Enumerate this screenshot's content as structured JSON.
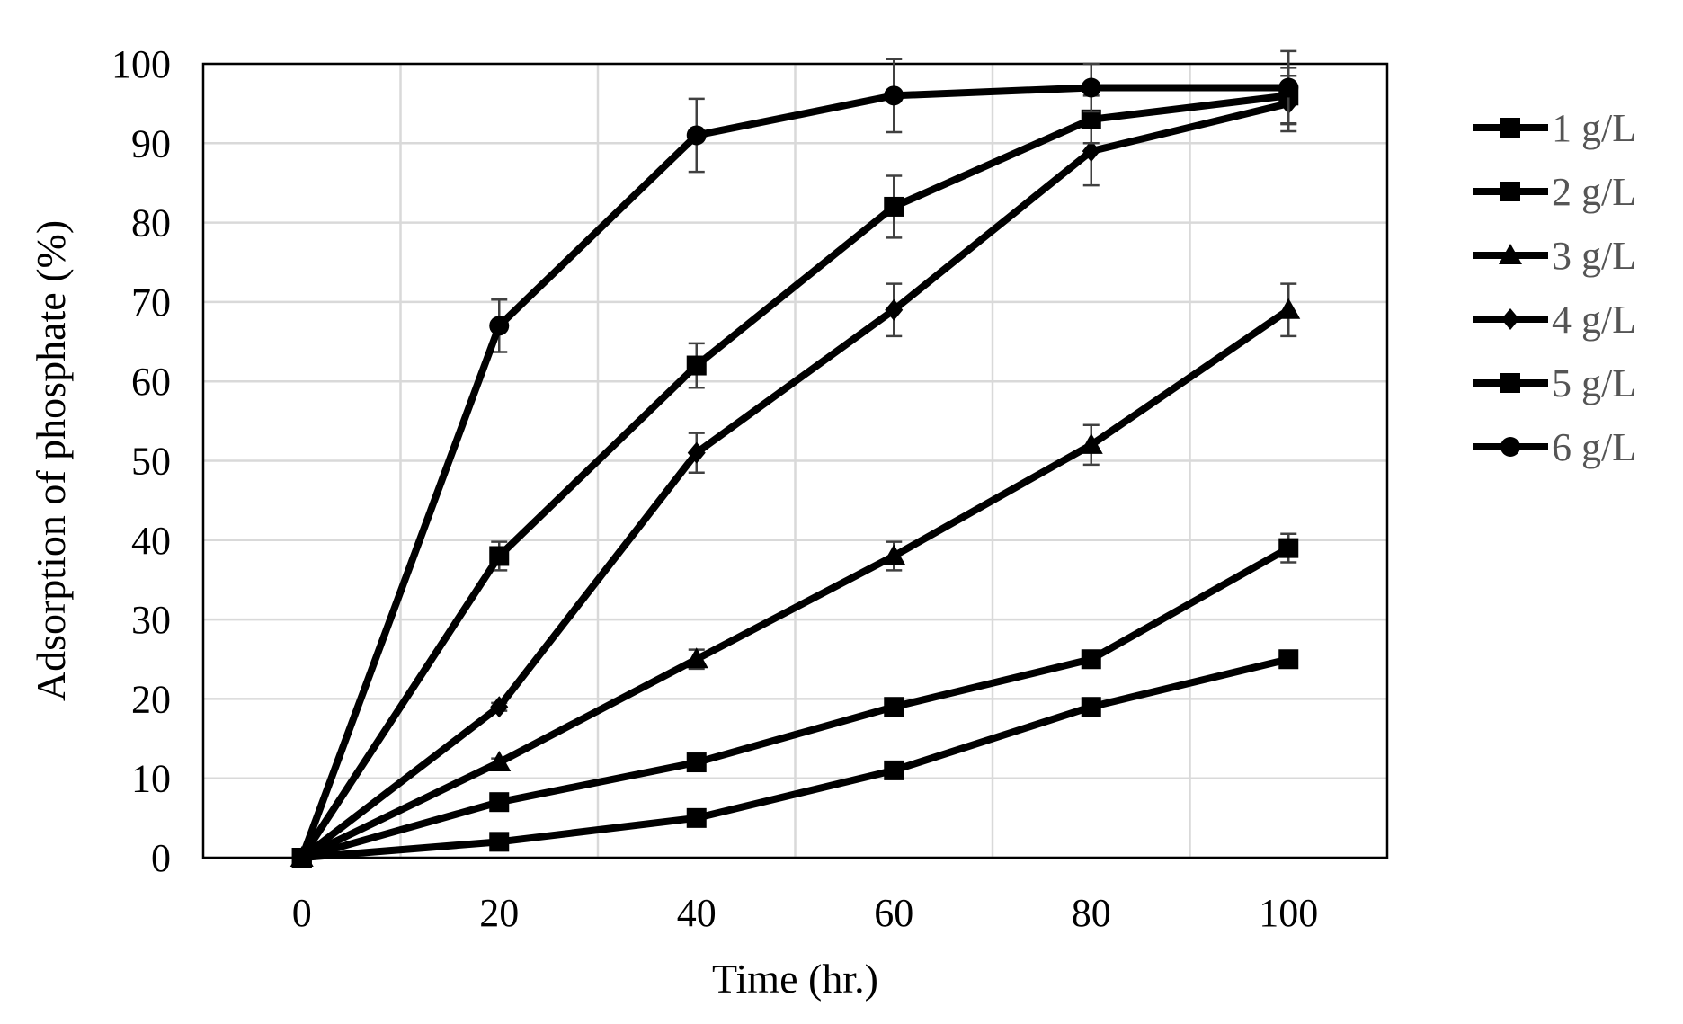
{
  "chart_data": {
    "type": "line",
    "title": "",
    "xlabel": "Time (hr.)",
    "ylabel": "Adsorption of phosphate (%)",
    "xlim": [
      -10,
      110
    ],
    "ylim": [
      0,
      100
    ],
    "x_ticks": [
      0,
      20,
      40,
      60,
      80,
      100
    ],
    "x_tick_labels": [
      "0",
      "20",
      "40",
      "60",
      "80",
      "100"
    ],
    "y_ticks": [
      0,
      10,
      20,
      30,
      40,
      50,
      60,
      70,
      80,
      90,
      100
    ],
    "y_tick_labels": [
      "0",
      "10",
      "20",
      "30",
      "40",
      "50",
      "60",
      "70",
      "80",
      "90",
      "100"
    ],
    "grid": true,
    "legend_position": "right",
    "x": [
      0,
      20,
      40,
      60,
      80,
      100
    ],
    "series": [
      {
        "name": "1 g/L",
        "marker": "square",
        "values": [
          0,
          2,
          5,
          11,
          19,
          25
        ],
        "errors": [
          0,
          0.5,
          0.5,
          0.5,
          0.5,
          0.8
        ]
      },
      {
        "name": "2 g/L",
        "marker": "square",
        "values": [
          0,
          7,
          12,
          19,
          25,
          39
        ],
        "errors": [
          0,
          0.5,
          0.5,
          0.5,
          0.5,
          1.8
        ]
      },
      {
        "name": "3 g/L",
        "marker": "triangle",
        "values": [
          0,
          12,
          25,
          38,
          52,
          69
        ],
        "errors": [
          0,
          0.5,
          1.2,
          1.8,
          2.5,
          3.3
        ]
      },
      {
        "name": "4 g/L",
        "marker": "diamond",
        "values": [
          0,
          19,
          51,
          69,
          89,
          95
        ],
        "errors": [
          0,
          0.5,
          2.5,
          3.3,
          4.3,
          3.5
        ]
      },
      {
        "name": "5 g/L",
        "marker": "square",
        "values": [
          0,
          38,
          62,
          82,
          93,
          96
        ],
        "errors": [
          0,
          1.8,
          2.8,
          3.9,
          3.0,
          3.5
        ]
      },
      {
        "name": "6 g/L",
        "marker": "circle",
        "values": [
          0,
          67,
          91,
          96,
          97,
          97
        ],
        "errors": [
          0,
          3.3,
          4.6,
          4.6,
          3.0,
          4.6
        ]
      }
    ],
    "colors": {
      "line": "#000000",
      "grid": "#d9d9d9",
      "error": "#404040",
      "legend_text": "#555555"
    }
  }
}
